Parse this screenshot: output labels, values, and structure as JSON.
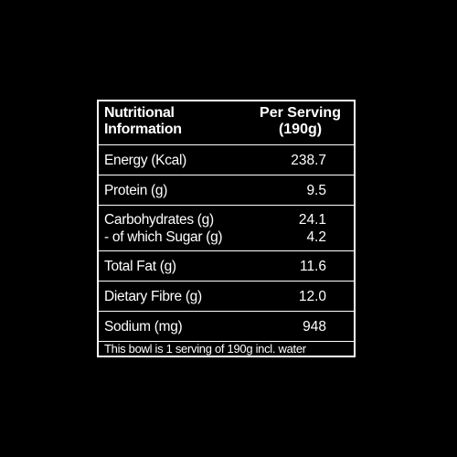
{
  "header": {
    "label_line1": "Nutritional",
    "label_line2": "Information",
    "value_line1": "Per Serving",
    "value_line2": "(190g)"
  },
  "rows": {
    "energy": {
      "label": "Energy (Kcal)",
      "value": "238.7"
    },
    "protein": {
      "label": "Protein (g)",
      "value": "9.5"
    },
    "carbs": {
      "label": "Carbohydrates (g)",
      "value": "24.1"
    },
    "sugar": {
      "label": "- of which Sugar (g)",
      "value": "4.2"
    },
    "fat": {
      "label": "Total Fat (g)",
      "value": "11.6"
    },
    "fibre": {
      "label": "Dietary Fibre (g)",
      "value": "12.0"
    },
    "sodium": {
      "label": "Sodium (mg)",
      "value": "948"
    }
  },
  "footer": {
    "note": "This bowl is 1 serving of 190g incl. water"
  },
  "colors": {
    "background": "#000000",
    "text": "#ffffff",
    "border": "#ffffff"
  }
}
